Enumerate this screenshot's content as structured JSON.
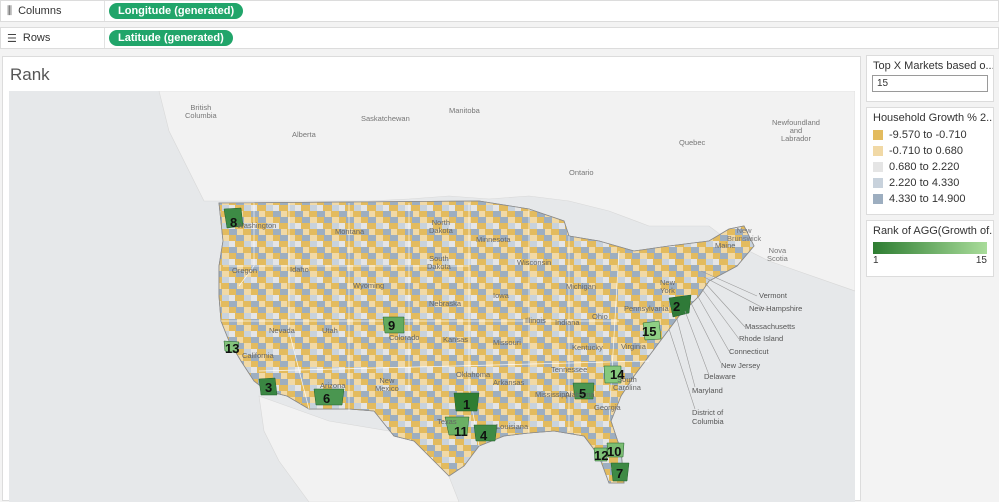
{
  "shelves": {
    "columns": {
      "icon": "columns-icon",
      "label": "Columns",
      "pill": "Longitude (generated)"
    },
    "rows": {
      "icon": "rows-icon",
      "label": "Rows",
      "pill": "Latitude (generated)"
    }
  },
  "sheet": {
    "title": "Rank"
  },
  "map": {
    "labels": {
      "british_columbia": "British\nColumbia",
      "alberta": "Alberta",
      "saskatchewan": "Saskatchewan",
      "manitoba": "Manitoba",
      "ontario": "Ontario",
      "quebec": "Quebec",
      "newfoundland": "Newfoundland\nand\nLabrador",
      "new_brunswick": "New\nBrunswick",
      "nova_scotia": "Nova\nScotia",
      "washington": "Washington",
      "oregon": "Oregon",
      "idaho": "Idaho",
      "montana": "Montana",
      "wyoming": "Wyoming",
      "nevada": "Nevada",
      "utah": "Utah",
      "california": "California",
      "arizona": "Arizona",
      "new_mexico": "New\nMexico",
      "colorado": "Colorado",
      "north_dakota": "North\nDakota",
      "south_dakota": "South\nDakota",
      "nebraska": "Nebraska",
      "kansas": "Kansas",
      "oklahoma": "Oklahoma",
      "texas": "Texas",
      "minnesota": "Minnesota",
      "iowa": "Iowa",
      "missouri": "Missouri",
      "arkansas": "Arkansas",
      "louisiana": "Louisiana",
      "wisconsin": "Wisconsin",
      "illinois": "Illinois",
      "michigan": "Michigan",
      "indiana": "Indiana",
      "ohio": "Ohio",
      "kentucky": "Kentucky",
      "tennessee": "Tennessee",
      "mississippi": "Mississippi",
      "alabama": "Alabama",
      "georgia": "Georgia",
      "south_carolina": "South\nCarolina",
      "virginia": "Virginia",
      "pennsylvania": "Pennsylvania",
      "new_york": "New\nYork",
      "maine": "Maine"
    },
    "callouts": {
      "vermont": "Vermont",
      "new_hampshire": "New Hampshire",
      "massachusetts": "Massachusetts",
      "rhode_island": "Rhode Island",
      "connecticut": "Connecticut",
      "new_jersey": "New Jersey",
      "delaware": "Delaware",
      "maryland": "Maryland",
      "dc": "District of\nColumbia"
    },
    "ranks": [
      "8",
      "2",
      "15",
      "9",
      "13",
      "14",
      "3",
      "5",
      "6",
      "1",
      "11",
      "4",
      "10",
      "12",
      "7"
    ]
  },
  "param": {
    "title": "Top X Markets based o...",
    "value": "15"
  },
  "legend": {
    "title": "Household Growth % 2...",
    "items": [
      {
        "label": "-9.570 to -0.710",
        "color": "#e3bb5e"
      },
      {
        "label": "-0.710 to 0.680",
        "color": "#f1d9a6"
      },
      {
        "label": "0.680 to 2.220",
        "color": "#e5e5e5"
      },
      {
        "label": "2.220 to 4.330",
        "color": "#c8d2dc"
      },
      {
        "label": "4.330 to 14.900",
        "color": "#9daec0"
      }
    ]
  },
  "rank_legend": {
    "title": "Rank of AGG(Growth of...",
    "min": "1",
    "max": "15",
    "color_from": "#2e7d32",
    "color_to": "#a9dc9a"
  }
}
